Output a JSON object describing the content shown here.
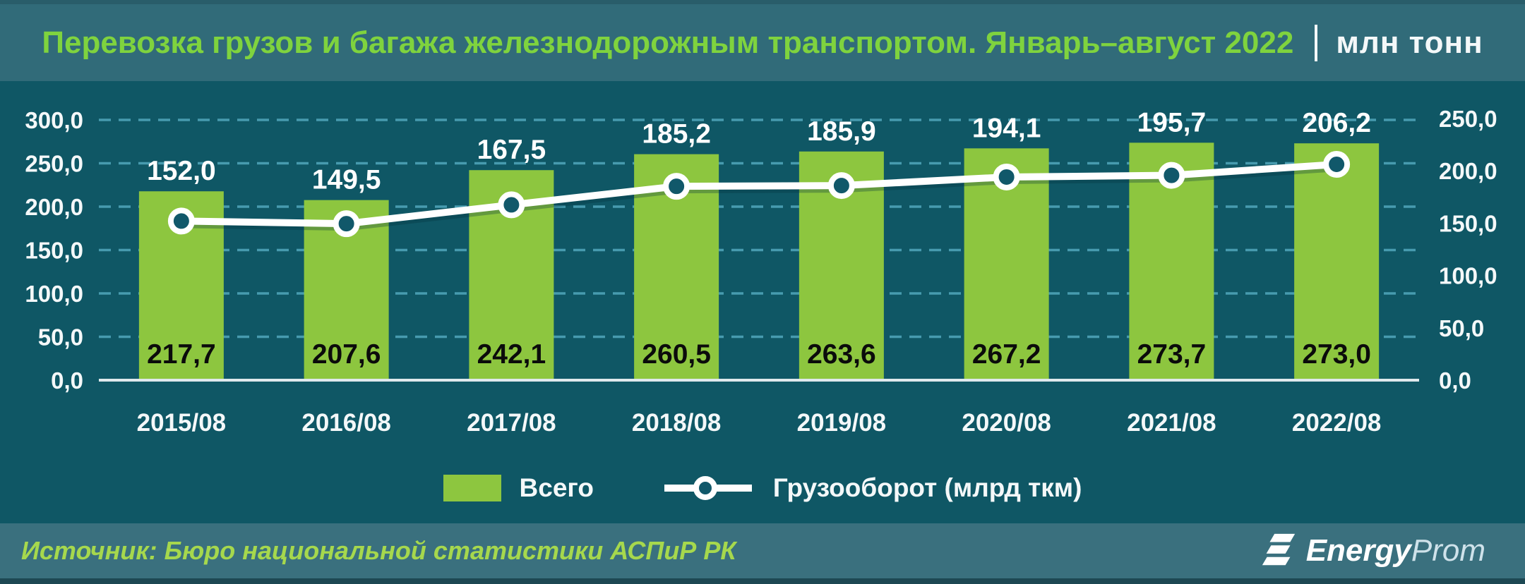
{
  "header": {
    "title": "Перевозка грузов и багажа железнодорожным транспортом. Январь–август 2022",
    "separator": "│",
    "unit": "млн тонн"
  },
  "chart_data": {
    "type": "bar",
    "subtype": "bar-line-combo",
    "title": "Перевозка грузов и багажа железнодорожным транспортом. Январь–август 2022 (млн тонн)",
    "categories": [
      "2015/08",
      "2016/08",
      "2017/08",
      "2018/08",
      "2019/08",
      "2020/08",
      "2021/08",
      "2022/08"
    ],
    "series": [
      {
        "name": "Всего",
        "type": "bar",
        "axis": "left",
        "color": "#8dc63f",
        "values": [
          217.7,
          207.6,
          242.1,
          260.5,
          263.6,
          267.2,
          273.7,
          273.0
        ],
        "labels": [
          "217,7",
          "207,6",
          "242,1",
          "260,5",
          "263,6",
          "267,2",
          "273,7",
          "273,0"
        ]
      },
      {
        "name": "Грузооборот (млрд ткм)",
        "type": "line",
        "axis": "right",
        "color": "#ffffff",
        "values": [
          152.0,
          149.5,
          167.5,
          185.2,
          185.9,
          194.1,
          195.7,
          206.2
        ],
        "labels": [
          "152,0",
          "149,5",
          "167,5",
          "185,2",
          "185,9",
          "194,1",
          "195,7",
          "206,2"
        ]
      }
    ],
    "left_axis": {
      "min": 0,
      "max": 300,
      "step": 50,
      "tick_labels": [
        "0,0",
        "50,0",
        "100,0",
        "150,0",
        "200,0",
        "250,0",
        "300,0"
      ]
    },
    "right_axis": {
      "min": 0,
      "max": 250,
      "step": 50,
      "tick_labels": [
        "0,0",
        "50,0",
        "100,0",
        "150,0",
        "200,0",
        "250,0"
      ]
    },
    "grid": "horizontal-dashed",
    "legend_position": "bottom-center"
  },
  "legend": {
    "bar_label": "Всего",
    "line_label": "Грузооборот (млрд ткм)"
  },
  "footer": {
    "source": "Источник: Бюро национальной статистики АСПиР РК",
    "logo_bold": "Energy",
    "logo_light": "Prom"
  },
  "colors": {
    "header_bg": "#316b79",
    "chart_bg": "#0f5765",
    "footer_bg": "#3a707e",
    "title_green": "#7fd33e",
    "bar": "#8dc63f",
    "line": "#ffffff",
    "marker_fill": "#11586a",
    "grid": "#5ab2c8",
    "axis_text": "#f4f8f9",
    "bar_label_text": "#0b0b0b",
    "source_text": "#a6d84d"
  }
}
